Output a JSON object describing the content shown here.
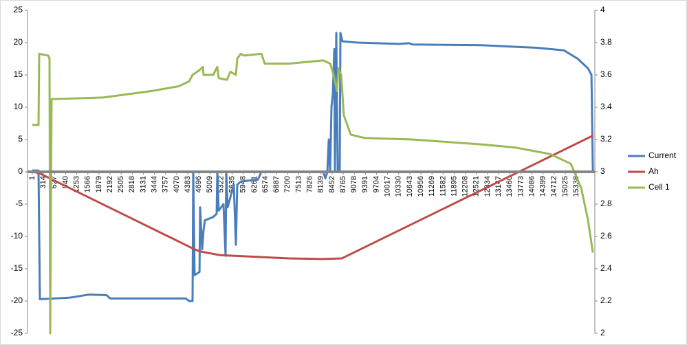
{
  "chart_data": {
    "type": "line",
    "xlim": [
      -135,
      15860
    ],
    "xticks": [
      1,
      314,
      627,
      940,
      1253,
      1566,
      1879,
      2192,
      2505,
      2818,
      3131,
      3444,
      3757,
      4070,
      4383,
      4696,
      5009,
      5322,
      5635,
      5948,
      6261,
      6574,
      6887,
      7200,
      7513,
      7826,
      8139,
      8452,
      8765,
      9078,
      9391,
      9704,
      10017,
      10330,
      10643,
      10956,
      11269,
      11582,
      11895,
      12208,
      12521,
      12834,
      13147,
      13460,
      13773,
      14086,
      14399,
      14712,
      15025,
      15338
    ],
    "ylim": [
      -25,
      25
    ],
    "yticks": [
      -25,
      -20,
      -15,
      -10,
      -5,
      0,
      5,
      10,
      15,
      20,
      25
    ],
    "y2lim": [
      2,
      4
    ],
    "y2ticks": [
      2,
      2.2,
      2.4,
      2.6,
      2.8,
      3,
      3.2,
      3.4,
      3.6,
      3.8,
      4
    ],
    "grid": false,
    "legend": "right",
    "series": [
      {
        "name": "Current",
        "color": "#4a7ebb",
        "x": [
          1,
          175,
          214,
          1028,
          1610,
          2095,
          2192,
          4325,
          4422,
          4519,
          4538,
          4577,
          4713,
          4732,
          4790,
          4829,
          4868,
          5100,
          5197,
          5217,
          5255,
          5391,
          5449,
          5469,
          5507,
          5682,
          5740,
          5779,
          5876,
          6361,
          6458,
          8203,
          8261,
          8319,
          8358,
          8397,
          8435,
          8474,
          8513,
          8532,
          8571,
          8610,
          8668,
          8687,
          8745,
          9172,
          10336,
          10627,
          10723,
          12662,
          14214,
          14989,
          15377,
          15668,
          15765,
          15804
        ],
        "values": [
          0.2,
          0.2,
          -19.7,
          -19.5,
          -19,
          -19.1,
          -19.6,
          -19.6,
          -20,
          -20,
          0,
          -16,
          -15.5,
          -5.5,
          -12,
          -9,
          -7.5,
          -7,
          -6.5,
          0,
          -6,
          -5,
          -13,
          0,
          -5.5,
          -2,
          -11.3,
          -2,
          -1.5,
          -1.2,
          0,
          0,
          -1,
          0,
          5,
          0,
          10,
          12,
          19,
          0,
          21.5,
          0,
          0,
          21.5,
          20.2,
          20,
          19.8,
          19.9,
          19.7,
          19.6,
          19.2,
          18.8,
          17.5,
          16,
          15,
          0
        ]
      },
      {
        "name": "Ah",
        "color": "#be4b48",
        "x": [
          1,
          195,
          4577,
          4713,
          5294,
          6070,
          7232,
          8203,
          8726,
          15804
        ],
        "values": [
          0,
          -0.2,
          -12,
          -12.3,
          -12.9,
          -13.1,
          -13.4,
          -13.5,
          -13.4,
          5.6
        ]
      },
      {
        "name": "Cell 1",
        "color": "#98b954",
        "axis": "y2",
        "x": [
          1,
          175,
          195,
          447,
          486,
          505,
          544,
          1998,
          3355,
          4131,
          4422,
          4519,
          4713,
          4810,
          4829,
          5100,
          5217,
          5255,
          5488,
          5585,
          5740,
          5779,
          5876,
          5973,
          6458,
          6555,
          7233,
          8203,
          8397,
          8494,
          8590,
          8629,
          8707,
          8784,
          8978,
          9366,
          10723,
          12662,
          13632,
          14601,
          15183,
          15474,
          15668,
          15804
        ],
        "values": [
          3.29,
          3.29,
          3.73,
          3.72,
          3.7,
          2,
          3.45,
          3.46,
          3.5,
          3.53,
          3.56,
          3.6,
          3.63,
          3.65,
          3.6,
          3.6,
          3.65,
          3.58,
          3.57,
          3.62,
          3.6,
          3.7,
          3.73,
          3.72,
          3.73,
          3.67,
          3.67,
          3.69,
          3.67,
          3.6,
          3.5,
          3.64,
          3.6,
          3.35,
          3.23,
          3.21,
          3.2,
          3.17,
          3.15,
          3.11,
          3.05,
          2.9,
          2.7,
          2.5
        ]
      }
    ]
  }
}
